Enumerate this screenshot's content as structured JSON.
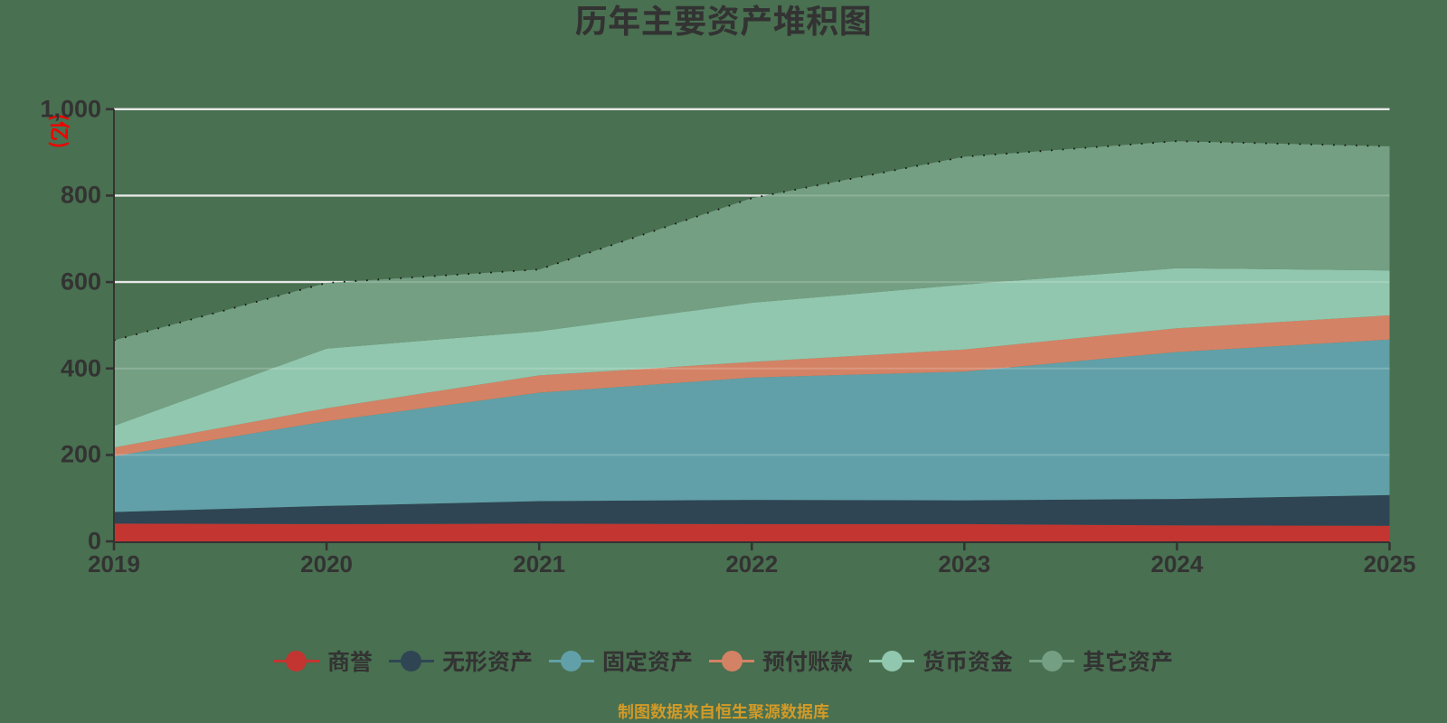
{
  "page": {
    "background": "#497050"
  },
  "chart_data": {
    "type": "area",
    "stacked": true,
    "title": "历年主要资产堆积图",
    "unit_label": "(亿)",
    "x": [
      2019,
      2020,
      2021,
      2022,
      2023,
      2024,
      2025
    ],
    "series": [
      {
        "name": "商誉",
        "color": "#c23531",
        "values": [
          41,
          40,
          41,
          40,
          40,
          37,
          36
        ]
      },
      {
        "name": "无形资产",
        "color": "#2f4554",
        "values": [
          27,
          42,
          52,
          56,
          55,
          61,
          71
        ]
      },
      {
        "name": "固定资产",
        "color": "#61a0a8",
        "values": [
          129,
          196,
          251,
          283,
          298,
          340,
          360
        ]
      },
      {
        "name": "预付账款",
        "color": "#d48265",
        "values": [
          20,
          30,
          40,
          36,
          51,
          55,
          56
        ]
      },
      {
        "name": "货币资金",
        "color": "#91c7ae",
        "values": [
          50,
          138,
          102,
          137,
          150,
          139,
          104
        ]
      },
      {
        "name": "其它资产",
        "color": "#749f83",
        "values": [
          198,
          152,
          143,
          242,
          296,
          294,
          287
        ]
      }
    ],
    "ylim": [
      0,
      1000
    ],
    "yticks": [
      0,
      200,
      400,
      600,
      800,
      1000
    ],
    "ytick_labels": [
      "0",
      "200",
      "400",
      "600",
      "800",
      "1,000"
    ],
    "grid": true,
    "legend_position": "bottom",
    "total_line": {
      "style": "dashed",
      "color": "#141414"
    },
    "axis_color": "#333333",
    "grid_color": "#E8E8E8",
    "label_color": "#333333",
    "unit_label_color": "#F20000"
  },
  "footer": {
    "text": "制图数据来自恒生聚源数据库",
    "color": "#D29A28"
  }
}
